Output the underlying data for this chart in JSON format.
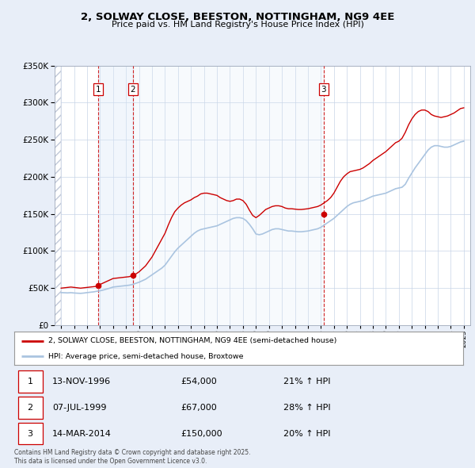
{
  "title": "2, SOLWAY CLOSE, BEESTON, NOTTINGHAM, NG9 4EE",
  "subtitle": "Price paid vs. HM Land Registry's House Price Index (HPI)",
  "legend_entry1": "2, SOLWAY CLOSE, BEESTON, NOTTINGHAM, NG9 4EE (semi-detached house)",
  "legend_entry2": "HPI: Average price, semi-detached house, Broxtowe",
  "footer": "Contains HM Land Registry data © Crown copyright and database right 2025.\nThis data is licensed under the Open Government Licence v3.0.",
  "sale_color": "#cc0000",
  "hpi_color": "#aac4e0",
  "vline_color": "#cc0000",
  "background_color": "#e8eef8",
  "plot_bg_color": "#ffffff",
  "shade1_color": "#d8e8f8",
  "shade2_color": "#e8f0f8",
  "ylim": [
    0,
    350000
  ],
  "xlim_start": 1993.5,
  "xlim_end": 2025.5,
  "transactions": [
    {
      "num": 1,
      "date_dec": 1996.87,
      "price": 54000,
      "label": "1",
      "date_str": "13-NOV-1996",
      "pct": "21%"
    },
    {
      "num": 2,
      "date_dec": 1999.51,
      "price": 67000,
      "label": "2",
      "date_str": "07-JUL-1999",
      "pct": "28%"
    },
    {
      "num": 3,
      "date_dec": 2014.2,
      "price": 150000,
      "label": "3",
      "date_str": "14-MAR-2014",
      "pct": "20%"
    }
  ],
  "hpi_data": [
    [
      1994.0,
      44000
    ],
    [
      1994.25,
      43800
    ],
    [
      1994.5,
      43600
    ],
    [
      1994.75,
      43900
    ],
    [
      1995.0,
      43500
    ],
    [
      1995.25,
      43200
    ],
    [
      1995.5,
      43000
    ],
    [
      1995.75,
      43400
    ],
    [
      1996.0,
      44000
    ],
    [
      1996.25,
      44500
    ],
    [
      1996.5,
      45000
    ],
    [
      1996.75,
      45800
    ],
    [
      1997.0,
      46500
    ],
    [
      1997.25,
      47500
    ],
    [
      1997.5,
      48800
    ],
    [
      1997.75,
      50000
    ],
    [
      1998.0,
      51500
    ],
    [
      1998.25,
      52000
    ],
    [
      1998.5,
      52500
    ],
    [
      1998.75,
      53000
    ],
    [
      1999.0,
      53500
    ],
    [
      1999.25,
      54000
    ],
    [
      1999.5,
      55000
    ],
    [
      1999.75,
      56500
    ],
    [
      2000.0,
      58000
    ],
    [
      2000.25,
      60000
    ],
    [
      2000.5,
      62000
    ],
    [
      2000.75,
      65000
    ],
    [
      2001.0,
      68000
    ],
    [
      2001.25,
      71000
    ],
    [
      2001.5,
      74000
    ],
    [
      2001.75,
      77000
    ],
    [
      2002.0,
      81000
    ],
    [
      2002.25,
      87000
    ],
    [
      2002.5,
      93000
    ],
    [
      2002.75,
      99000
    ],
    [
      2003.0,
      104000
    ],
    [
      2003.25,
      108000
    ],
    [
      2003.5,
      112000
    ],
    [
      2003.75,
      116000
    ],
    [
      2004.0,
      120000
    ],
    [
      2004.25,
      124000
    ],
    [
      2004.5,
      127000
    ],
    [
      2004.75,
      129000
    ],
    [
      2005.0,
      130000
    ],
    [
      2005.25,
      131000
    ],
    [
      2005.5,
      132000
    ],
    [
      2005.75,
      133000
    ],
    [
      2006.0,
      134000
    ],
    [
      2006.25,
      136000
    ],
    [
      2006.5,
      138000
    ],
    [
      2006.75,
      140000
    ],
    [
      2007.0,
      142000
    ],
    [
      2007.25,
      144000
    ],
    [
      2007.5,
      145000
    ],
    [
      2007.75,
      145000
    ],
    [
      2008.0,
      144000
    ],
    [
      2008.25,
      141000
    ],
    [
      2008.5,
      136000
    ],
    [
      2008.75,
      130000
    ],
    [
      2009.0,
      123000
    ],
    [
      2009.25,
      122000
    ],
    [
      2009.5,
      123000
    ],
    [
      2009.75,
      125000
    ],
    [
      2010.0,
      127000
    ],
    [
      2010.25,
      129000
    ],
    [
      2010.5,
      130000
    ],
    [
      2010.75,
      130000
    ],
    [
      2011.0,
      129000
    ],
    [
      2011.25,
      128000
    ],
    [
      2011.5,
      127000
    ],
    [
      2011.75,
      127000
    ],
    [
      2012.0,
      126500
    ],
    [
      2012.25,
      126000
    ],
    [
      2012.5,
      126000
    ],
    [
      2012.75,
      126500
    ],
    [
      2013.0,
      127000
    ],
    [
      2013.25,
      128000
    ],
    [
      2013.5,
      129000
    ],
    [
      2013.75,
      130000
    ],
    [
      2014.0,
      132000
    ],
    [
      2014.25,
      135000
    ],
    [
      2014.5,
      138000
    ],
    [
      2014.75,
      141000
    ],
    [
      2015.0,
      144000
    ],
    [
      2015.25,
      148000
    ],
    [
      2015.5,
      152000
    ],
    [
      2015.75,
      156000
    ],
    [
      2016.0,
      160000
    ],
    [
      2016.25,
      163000
    ],
    [
      2016.5,
      165000
    ],
    [
      2016.75,
      166000
    ],
    [
      2017.0,
      167000
    ],
    [
      2017.25,
      168000
    ],
    [
      2017.5,
      170000
    ],
    [
      2017.75,
      172000
    ],
    [
      2018.0,
      174000
    ],
    [
      2018.25,
      175000
    ],
    [
      2018.5,
      176000
    ],
    [
      2018.75,
      177000
    ],
    [
      2019.0,
      178000
    ],
    [
      2019.25,
      180000
    ],
    [
      2019.5,
      182000
    ],
    [
      2019.75,
      184000
    ],
    [
      2020.0,
      185000
    ],
    [
      2020.25,
      186000
    ],
    [
      2020.5,
      190000
    ],
    [
      2020.75,
      198000
    ],
    [
      2021.0,
      205000
    ],
    [
      2021.25,
      212000
    ],
    [
      2021.5,
      218000
    ],
    [
      2021.75,
      224000
    ],
    [
      2022.0,
      230000
    ],
    [
      2022.25,
      236000
    ],
    [
      2022.5,
      240000
    ],
    [
      2022.75,
      242000
    ],
    [
      2023.0,
      242000
    ],
    [
      2023.25,
      241000
    ],
    [
      2023.5,
      240000
    ],
    [
      2023.75,
      240000
    ],
    [
      2024.0,
      241000
    ],
    [
      2024.25,
      243000
    ],
    [
      2024.5,
      245000
    ],
    [
      2024.75,
      247000
    ],
    [
      2025.0,
      248000
    ]
  ],
  "price_data": [
    [
      1994.0,
      50000
    ],
    [
      1994.25,
      50500
    ],
    [
      1994.5,
      51000
    ],
    [
      1994.75,
      51500
    ],
    [
      1995.0,
      51000
    ],
    [
      1995.25,
      50500
    ],
    [
      1995.5,
      50000
    ],
    [
      1995.75,
      50500
    ],
    [
      1996.0,
      51000
    ],
    [
      1996.25,
      51500
    ],
    [
      1996.5,
      52000
    ],
    [
      1996.75,
      52500
    ],
    [
      1997.0,
      55000
    ],
    [
      1997.25,
      57000
    ],
    [
      1997.5,
      59000
    ],
    [
      1997.75,
      61000
    ],
    [
      1998.0,
      63000
    ],
    [
      1998.25,
      63500
    ],
    [
      1998.5,
      64000
    ],
    [
      1998.75,
      64500
    ],
    [
      1999.0,
      65000
    ],
    [
      1999.25,
      65500
    ],
    [
      1999.5,
      67000
    ],
    [
      1999.75,
      69000
    ],
    [
      2000.0,
      72000
    ],
    [
      2000.25,
      76000
    ],
    [
      2000.5,
      80000
    ],
    [
      2000.75,
      86000
    ],
    [
      2001.0,
      92000
    ],
    [
      2001.25,
      100000
    ],
    [
      2001.5,
      108000
    ],
    [
      2001.75,
      116000
    ],
    [
      2002.0,
      124000
    ],
    [
      2002.25,
      135000
    ],
    [
      2002.5,
      145000
    ],
    [
      2002.75,
      153000
    ],
    [
      2003.0,
      158000
    ],
    [
      2003.25,
      162000
    ],
    [
      2003.5,
      165000
    ],
    [
      2003.75,
      167000
    ],
    [
      2004.0,
      169000
    ],
    [
      2004.25,
      172000
    ],
    [
      2004.5,
      174000
    ],
    [
      2004.75,
      177000
    ],
    [
      2005.0,
      178000
    ],
    [
      2005.25,
      178000
    ],
    [
      2005.5,
      177000
    ],
    [
      2005.75,
      176000
    ],
    [
      2006.0,
      175000
    ],
    [
      2006.25,
      172000
    ],
    [
      2006.5,
      170000
    ],
    [
      2006.75,
      168000
    ],
    [
      2007.0,
      167000
    ],
    [
      2007.25,
      168000
    ],
    [
      2007.5,
      170000
    ],
    [
      2007.75,
      170000
    ],
    [
      2008.0,
      168000
    ],
    [
      2008.25,
      163000
    ],
    [
      2008.5,
      155000
    ],
    [
      2008.75,
      148000
    ],
    [
      2009.0,
      145000
    ],
    [
      2009.25,
      148000
    ],
    [
      2009.5,
      152000
    ],
    [
      2009.75,
      156000
    ],
    [
      2010.0,
      158000
    ],
    [
      2010.25,
      160000
    ],
    [
      2010.5,
      161000
    ],
    [
      2010.75,
      161000
    ],
    [
      2011.0,
      160000
    ],
    [
      2011.25,
      158000
    ],
    [
      2011.5,
      157000
    ],
    [
      2011.75,
      157000
    ],
    [
      2012.0,
      156500
    ],
    [
      2012.25,
      156000
    ],
    [
      2012.5,
      156000
    ],
    [
      2012.75,
      156500
    ],
    [
      2013.0,
      157000
    ],
    [
      2013.25,
      158000
    ],
    [
      2013.5,
      159000
    ],
    [
      2013.75,
      160000
    ],
    [
      2014.0,
      162000
    ],
    [
      2014.25,
      165000
    ],
    [
      2014.5,
      168000
    ],
    [
      2014.75,
      172000
    ],
    [
      2015.0,
      178000
    ],
    [
      2015.25,
      186000
    ],
    [
      2015.5,
      194000
    ],
    [
      2015.75,
      200000
    ],
    [
      2016.0,
      204000
    ],
    [
      2016.25,
      207000
    ],
    [
      2016.5,
      208000
    ],
    [
      2016.75,
      209000
    ],
    [
      2017.0,
      210000
    ],
    [
      2017.25,
      212000
    ],
    [
      2017.5,
      215000
    ],
    [
      2017.75,
      218000
    ],
    [
      2018.0,
      222000
    ],
    [
      2018.25,
      225000
    ],
    [
      2018.5,
      228000
    ],
    [
      2018.75,
      231000
    ],
    [
      2019.0,
      234000
    ],
    [
      2019.25,
      238000
    ],
    [
      2019.5,
      242000
    ],
    [
      2019.75,
      246000
    ],
    [
      2020.0,
      248000
    ],
    [
      2020.25,
      252000
    ],
    [
      2020.5,
      260000
    ],
    [
      2020.75,
      270000
    ],
    [
      2021.0,
      278000
    ],
    [
      2021.25,
      284000
    ],
    [
      2021.5,
      288000
    ],
    [
      2021.75,
      290000
    ],
    [
      2022.0,
      290000
    ],
    [
      2022.25,
      288000
    ],
    [
      2022.5,
      284000
    ],
    [
      2022.75,
      282000
    ],
    [
      2023.0,
      281000
    ],
    [
      2023.25,
      280000
    ],
    [
      2023.5,
      281000
    ],
    [
      2023.75,
      282000
    ],
    [
      2024.0,
      284000
    ],
    [
      2024.25,
      286000
    ],
    [
      2024.5,
      289000
    ],
    [
      2024.75,
      292000
    ],
    [
      2025.0,
      293000
    ]
  ]
}
